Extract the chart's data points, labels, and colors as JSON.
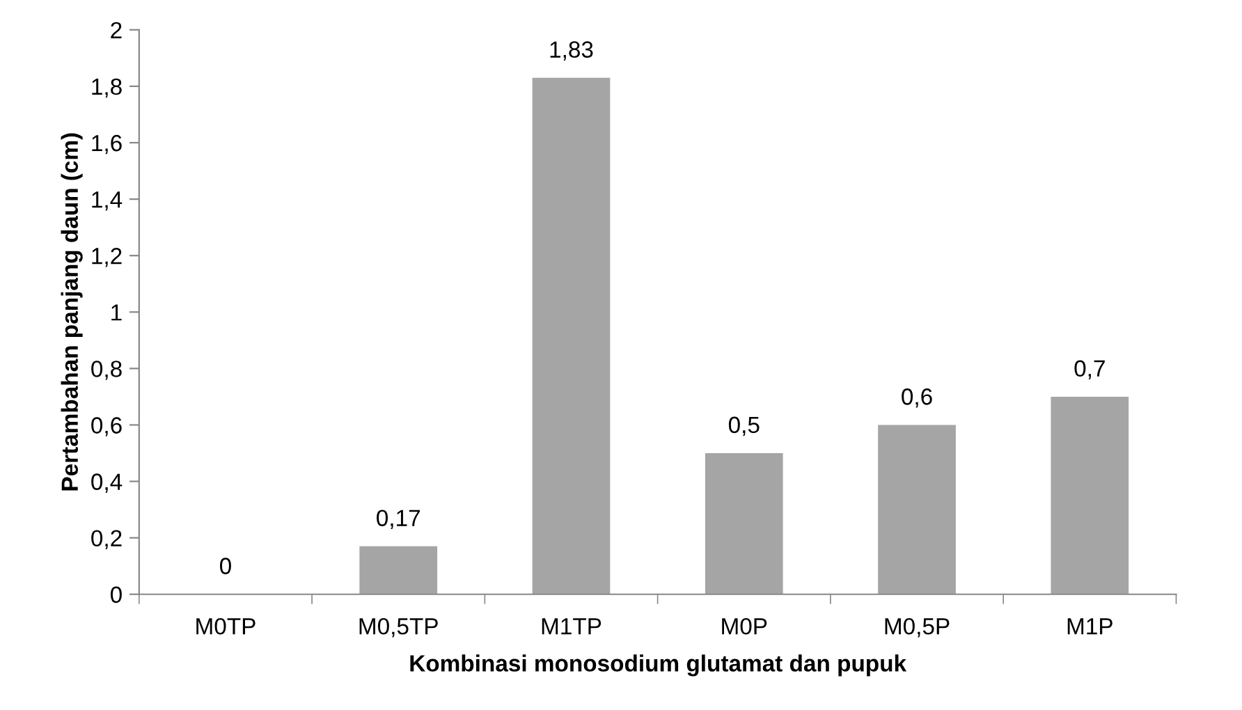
{
  "chart_data": {
    "type": "bar",
    "xlabel": "Kombinasi monosodium glutamat dan pupuk",
    "ylabel": "Pertambahan panjang daun (cm)",
    "categories": [
      "M0TP",
      "M0,5TP",
      "M1TP",
      "M0P",
      "M0,5P",
      "M1P"
    ],
    "values": [
      0,
      0.17,
      1.83,
      0.5,
      0.6,
      0.7
    ],
    "value_labels": [
      "0",
      "0,17",
      "1,83",
      "0,5",
      "0,6",
      "0,7"
    ],
    "color": "#a5a5a5",
    "ylim": [
      0,
      2
    ],
    "yticks": [
      0,
      {
        "value": 0.2,
        "label": "0,2"
      },
      {
        "value": 0.4,
        "label": "0,4"
      },
      {
        "value": 0.6,
        "label": "0,6"
      },
      {
        "value": 0.8,
        "label": "0,8"
      },
      1,
      {
        "value": 1.2,
        "label": "1,2"
      },
      {
        "value": 1.4,
        "label": "1,4"
      },
      {
        "value": 1.6,
        "label": "1,6"
      },
      {
        "value": 1.8,
        "label": "1,8"
      },
      2
    ],
    "grid": false,
    "legend": false
  }
}
